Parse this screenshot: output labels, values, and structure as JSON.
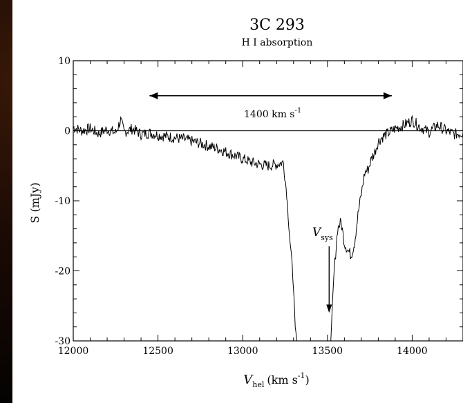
{
  "chart_data": {
    "type": "line",
    "title": "3C 293",
    "subtitle": "H I absorption",
    "xlabel": "V",
    "xlabel_sub": "hel",
    "xlabel_unit": "(km s",
    "xlabel_sup": "-1",
    "xlabel_close": ")",
    "ylabel": "S (mJy)",
    "xlim": [
      12000,
      14300
    ],
    "ylim": [
      -30,
      10
    ],
    "xticks": [
      12000,
      12500,
      13000,
      13500,
      14000
    ],
    "xtick_labels": [
      "12000",
      "12500",
      "13000",
      "13500",
      "14000"
    ],
    "yticks": [
      10,
      0,
      -10,
      -20,
      -30
    ],
    "ytick_labels": [
      "10",
      "0",
      "-10",
      "-20",
      "-30"
    ],
    "grid": false,
    "zero_line": 0,
    "annotations": {
      "width_arrow": {
        "x_start": 12450,
        "x_end": 13880,
        "y": 5,
        "label": "1400 km s",
        "label_sup": "-1"
      },
      "vsys": {
        "label": "V",
        "label_sub": "sys",
        "x": 13510,
        "y_start": -16.5,
        "y_end": -26
      }
    },
    "series": [
      {
        "x": [
          12000,
          12050,
          12100,
          12150,
          12200,
          12250,
          12280,
          12300,
          12350,
          12400,
          12450,
          12500,
          12550,
          12600,
          12650,
          12700,
          12750,
          12800,
          12850,
          12900,
          12950,
          13000,
          13050,
          13100,
          13150,
          13200,
          13240,
          13260,
          13280,
          13300,
          13310,
          13320,
          13520,
          13530,
          13540,
          13560,
          13580,
          13600,
          13620,
          13640,
          13660,
          13680,
          13700,
          13720,
          13740,
          13760,
          13780,
          13800,
          13830,
          13860,
          13900,
          13950,
          14000,
          14050,
          14100,
          14150,
          14200,
          14250,
          14300
        ],
        "y": [
          0.5,
          0.0,
          0.3,
          -0.4,
          0.2,
          -0.3,
          1.5,
          -0.2,
          0.3,
          -0.5,
          -0.3,
          -0.6,
          -0.8,
          -1.0,
          -1.2,
          -1.5,
          -1.8,
          -2.2,
          -2.5,
          -3.0,
          -3.5,
          -4.0,
          -4.5,
          -4.8,
          -5.0,
          -4.8,
          -4.5,
          -9,
          -16,
          -22,
          -28,
          -30,
          -30,
          -25,
          -20,
          -14,
          -13,
          -16,
          -17,
          -17.8,
          -16,
          -12,
          -9,
          -6,
          -5.5,
          -4,
          -3,
          -1.5,
          -0.8,
          -0.3,
          0.3,
          0.8,
          1.5,
          0.5,
          -0.2,
          0.8,
          0.0,
          -0.5,
          -0.3
        ]
      }
    ]
  }
}
